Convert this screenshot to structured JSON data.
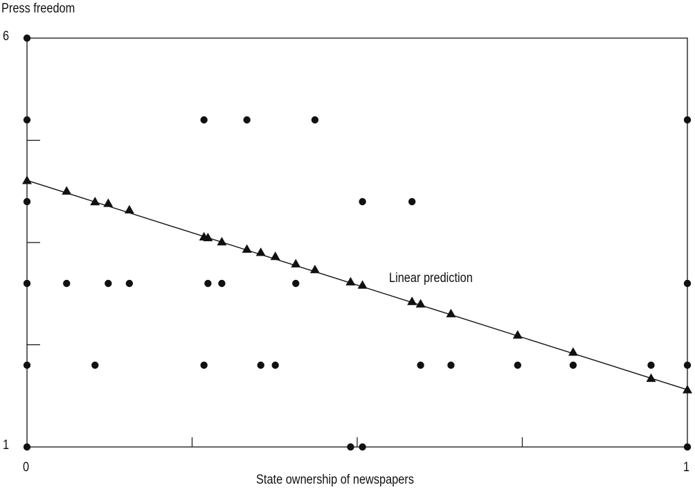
{
  "chart_data": {
    "type": "scatter",
    "title": "",
    "xlabel": "State ownership of newspapers",
    "ylabel": "Press freedom",
    "xlim": [
      0,
      1
    ],
    "ylim": [
      1,
      6
    ],
    "x_tick_labels": [
      "0",
      "1"
    ],
    "y_tick_labels": [
      "6",
      "1"
    ],
    "x_minor_ticks": [
      0.25,
      0.5,
      0.75
    ],
    "y_minor_ticks": [
      2.25,
      3.5,
      4.75
    ],
    "grid": false,
    "annotations": [
      {
        "text": "Linear prediction",
        "x": 0.545,
        "y": 3.05
      }
    ],
    "series": [
      {
        "marker": "circle",
        "points": [
          [
            0,
            6
          ],
          [
            0,
            5
          ],
          [
            0,
            4
          ],
          [
            0,
            3
          ],
          [
            0,
            2
          ],
          [
            0,
            1
          ],
          [
            0.06,
            3
          ],
          [
            0.103,
            2
          ],
          [
            0.123,
            3
          ],
          [
            0.155,
            3
          ],
          [
            0.268,
            5
          ],
          [
            0.268,
            2
          ],
          [
            0.274,
            3
          ],
          [
            0.295,
            3
          ],
          [
            0.333,
            5
          ],
          [
            0.354,
            2
          ],
          [
            0.376,
            2
          ],
          [
            0.407,
            3
          ],
          [
            0.436,
            5
          ],
          [
            0.49,
            1
          ],
          [
            0.508,
            4
          ],
          [
            0.508,
            1
          ],
          [
            0.583,
            4
          ],
          [
            0.596,
            2
          ],
          [
            0.642,
            2
          ],
          [
            0.743,
            2
          ],
          [
            0.827,
            2
          ],
          [
            0.945,
            2
          ],
          [
            1,
            5
          ],
          [
            1,
            3
          ],
          [
            1,
            2
          ],
          [
            1,
            1
          ]
        ]
      },
      {
        "name": "Linear prediction",
        "marker": "triangle",
        "points": [
          [
            0,
            4.26
          ],
          [
            0.06,
            4.13
          ],
          [
            0.103,
            4.0
          ],
          [
            0.123,
            3.98
          ],
          [
            0.155,
            3.9
          ],
          [
            0.268,
            3.57
          ],
          [
            0.274,
            3.56
          ],
          [
            0.295,
            3.51
          ],
          [
            0.333,
            3.42
          ],
          [
            0.354,
            3.38
          ],
          [
            0.376,
            3.33
          ],
          [
            0.407,
            3.24
          ],
          [
            0.436,
            3.17
          ],
          [
            0.49,
            3.02
          ],
          [
            0.508,
            2.98
          ],
          [
            0.583,
            2.78
          ],
          [
            0.596,
            2.75
          ],
          [
            0.642,
            2.63
          ],
          [
            0.743,
            2.37
          ],
          [
            0.827,
            2.16
          ],
          [
            0.945,
            1.84
          ],
          [
            1,
            1.7
          ]
        ]
      }
    ]
  }
}
